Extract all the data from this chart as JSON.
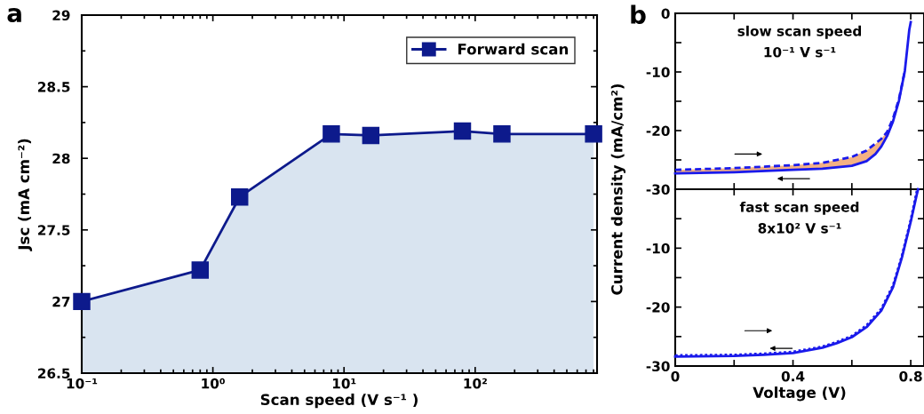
{
  "chart_data": [
    {
      "type": "area",
      "title": "a",
      "xlabel": "Scan speed (V s⁻¹ )",
      "ylabel": "Jsc (mA cm⁻²)",
      "log": "x",
      "marker": "square",
      "legend": "top right",
      "grid": false,
      "x": [
        0.1,
        0.8,
        1.6,
        8,
        16,
        80,
        160,
        800
      ],
      "series": [
        {
          "name": "Forward scan",
          "color": "#0d1a8c",
          "values": [
            27.0,
            27.22,
            27.73,
            28.17,
            28.16,
            28.19,
            28.17,
            28.17
          ]
        }
      ],
      "xlim": [
        0.1,
        850
      ],
      "xticks": [
        {
          "value": 0.1,
          "label": "10⁻¹"
        },
        {
          "value": 1,
          "label": "10⁰"
        },
        {
          "value": 10,
          "label": "10¹"
        },
        {
          "value": 100,
          "label": "10²"
        }
      ],
      "ylim": [
        26.5,
        29
      ],
      "yticks": [
        26.5,
        27,
        27.5,
        28,
        28.5,
        29
      ]
    },
    {
      "type": "line",
      "title": "b",
      "ylabel": "Current density (mA/cm²)",
      "tick_labels": "y",
      "grid": false,
      "annotations": [
        "slow scan speed",
        "10⁻¹ V s⁻¹"
      ],
      "series": [
        {
          "color": "#1a1aeb",
          "line_style": "solid",
          "x": [
            0,
            0.2,
            0.4,
            0.5,
            0.6,
            0.65,
            0.68,
            0.7,
            0.72,
            0.74,
            0.76,
            0.78,
            0.795,
            0.8
          ],
          "values": [
            -27.3,
            -27.1,
            -26.7,
            -26.5,
            -26.0,
            -25.2,
            -24.0,
            -22.7,
            -20.9,
            -18.4,
            -14.9,
            -9.8,
            -2.8,
            -1.5
          ],
          "lower": [
            -27.3,
            -27.1,
            -26.7,
            -26.5,
            -26.0,
            -25.2,
            -24.0,
            -22.7,
            -20.9,
            -18.4,
            -14.9,
            null,
            null,
            null
          ],
          "upper": [
            -26.7,
            -26.4,
            -25.9,
            -25.5,
            -24.5,
            -23.4,
            -22.3,
            -21.4,
            -20.2,
            -17.9,
            -14.6,
            null,
            null,
            null
          ]
        },
        {
          "color": "#1a1aeb",
          "line_style": "dashed",
          "x": [
            0,
            0.2,
            0.4,
            0.5,
            0.6,
            0.65,
            0.7,
            0.72,
            0.74,
            0.76,
            0.78
          ],
          "values": [
            -26.7,
            -26.4,
            -25.9,
            -25.5,
            -24.5,
            -23.4,
            -21.4,
            -20.2,
            -17.9,
            -14.6,
            -9.8
          ]
        }
      ],
      "xlim": [
        0,
        0.845
      ],
      "xticks": [
        0,
        {
          "value": 0.2,
          "label": null
        },
        0.4,
        {
          "value": 0.6,
          "label": null
        },
        0.8
      ],
      "ylim": [
        -30,
        0
      ],
      "yticks": [
        -30,
        {
          "value": -25,
          "label": null
        },
        -20,
        {
          "value": -15,
          "label": null
        },
        -10,
        {
          "value": -5,
          "label": null
        },
        0
      ]
    },
    {
      "type": "line",
      "xlabel": "Voltage (V)",
      "grid": false,
      "annotations": [
        "fast scan speed",
        "8x10² V s⁻¹"
      ],
      "series": [
        {
          "color": "#1a1aeb",
          "line_style": "solid",
          "x": [
            0,
            0.2,
            0.3,
            0.4,
            0.5,
            0.55,
            0.6,
            0.65,
            0.7,
            0.74,
            0.77,
            0.8,
            0.82,
            0.825
          ],
          "values": [
            -28.4,
            -28.3,
            -28.1,
            -27.8,
            -26.9,
            -26.1,
            -25.1,
            -23.4,
            -20.6,
            -16.6,
            -11.6,
            -5.5,
            -1.0,
            0
          ]
        },
        {
          "color": "#1a1aeb",
          "line_style": "dotted",
          "x": [
            0,
            0.2,
            0.3,
            0.4,
            0.5,
            0.55,
            0.6,
            0.65,
            0.7,
            0.74,
            0.77,
            0.8,
            0.822
          ],
          "values": [
            -28.2,
            -28.1,
            -27.9,
            -27.6,
            -26.7,
            -25.9,
            -24.9,
            -23.1,
            -20.3,
            -16.3,
            -11.3,
            -5.2,
            0
          ]
        }
      ],
      "xlim": [
        0,
        0.845
      ],
      "xticks": [
        0,
        {
          "value": 0.2,
          "label": null
        },
        0.4,
        {
          "value": 0.6,
          "label": null
        },
        0.8
      ],
      "ylim": [
        -30,
        0
      ],
      "yticks": [
        -30,
        {
          "value": -25,
          "label": null
        },
        -20,
        {
          "value": -15,
          "label": null
        },
        -10,
        {
          "value": -5,
          "label": null
        }
      ]
    }
  ]
}
